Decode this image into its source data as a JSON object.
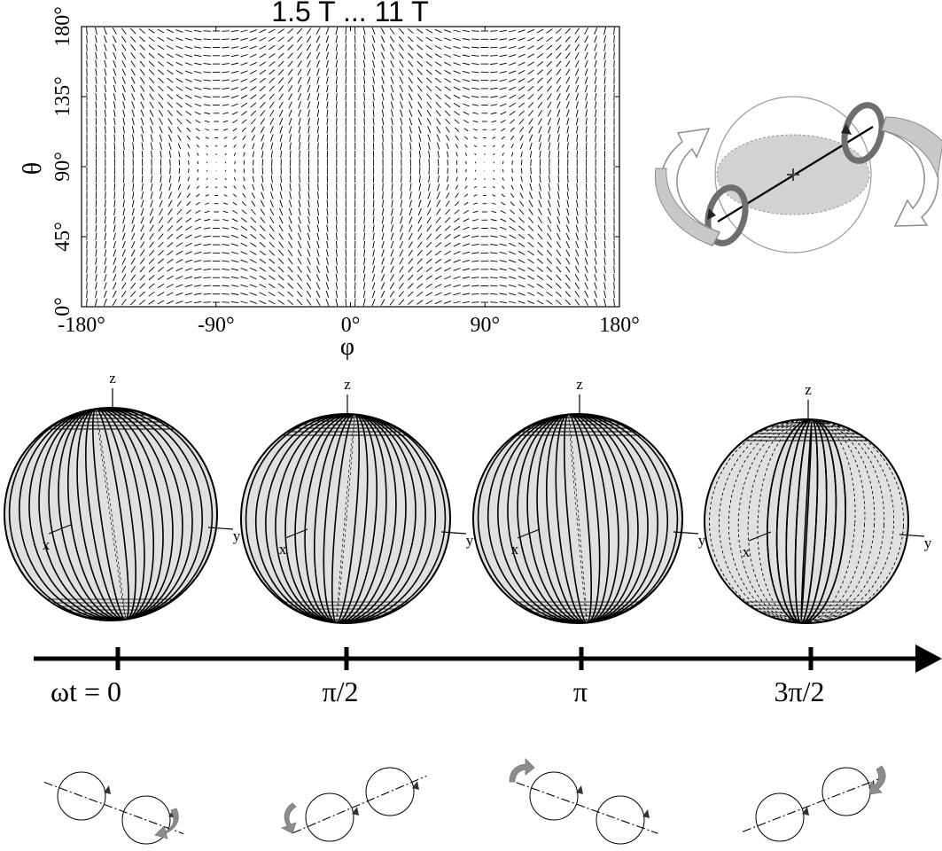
{
  "header": {
    "title": "1.5 T ... 11 T"
  },
  "field_map": {
    "y_axis_label": "θ",
    "x_axis_label": "φ",
    "y_ticks": [
      "0°",
      "45°",
      "90°",
      "135°",
      "180°"
    ],
    "x_ticks": [
      "-180°",
      "-90°",
      "0°",
      "90°",
      "180°"
    ]
  },
  "sphere_axes": {
    "z": "z",
    "x": "x",
    "y": "y"
  },
  "timeline": {
    "labels": [
      "ωt = 0",
      "π/2",
      "π",
      "3π/2"
    ]
  },
  "colors": {
    "ink": "#000000",
    "sphere_fill": "#e0e0e0",
    "rotation_arrow": "#8c8c8c",
    "rotation_arrow_light": "#c8c8c8"
  }
}
